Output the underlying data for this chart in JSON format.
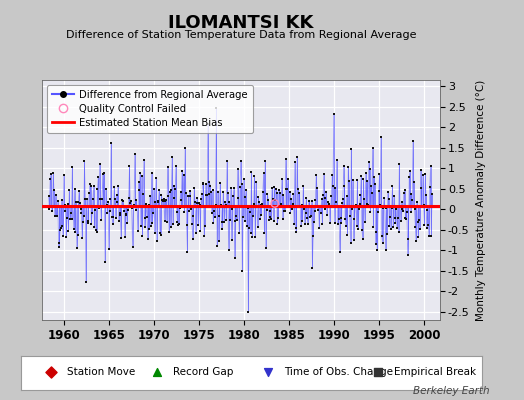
{
  "title": "ILOMANTSI KK",
  "subtitle": "Difference of Station Temperature Data from Regional Average",
  "ylabel": "Monthly Temperature Anomaly Difference (°C)",
  "bias": 0.07,
  "ylim": [
    -2.7,
    3.15
  ],
  "yticks": [
    -2.5,
    -2,
    -1.5,
    -1,
    -0.5,
    0,
    0.5,
    1,
    1.5,
    2,
    2.5,
    3
  ],
  "xlim": [
    1957.5,
    2001.8
  ],
  "xticks": [
    1960,
    1965,
    1970,
    1975,
    1980,
    1985,
    1990,
    1995,
    2000
  ],
  "fig_bg_color": "#c8c8c8",
  "plot_bg_color": "#e8e8f0",
  "line_color": "#5555ff",
  "bias_color": "#ff0000",
  "marker_color": "#111111",
  "watermark": "Berkeley Earth",
  "seed": 42,
  "n_years": 42,
  "start_year": 1958.25
}
